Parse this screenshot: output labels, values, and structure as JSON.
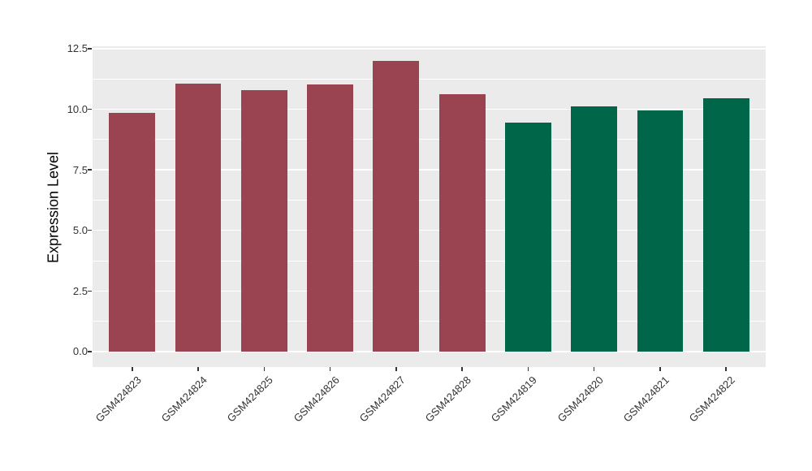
{
  "figure": {
    "background": "#FFFFFF",
    "panel_background": "#EBEBEB",
    "gridline_color": "#FFFFFF",
    "tick_mark_color": "#333333",
    "axis_text_color": "#333333",
    "axis_title_color": "#000000"
  },
  "chart_data": {
    "type": "bar",
    "title": "",
    "xlabel": "",
    "ylabel": "Expression Level",
    "categories": [
      "GSM424823",
      "GSM424824",
      "GSM424825",
      "GSM424826",
      "GSM424827",
      "GSM424828",
      "GSM424819",
      "GSM424820",
      "GSM424821",
      "GSM424822"
    ],
    "values": [
      9.84,
      11.07,
      10.8,
      11.04,
      12.0,
      10.62,
      9.45,
      10.12,
      9.96,
      10.45
    ],
    "bar_colors": [
      "#9A4451",
      "#9A4451",
      "#9A4451",
      "#9A4451",
      "#9A4451",
      "#9A4451",
      "#00664A",
      "#00664A",
      "#00664A",
      "#00664A"
    ],
    "accent_colors": {
      "maroon": "#9A4451",
      "green": "#00664A"
    },
    "ylim": [
      -0.64,
      12.6
    ],
    "yticks": [
      {
        "value": 0,
        "label": "0.0"
      },
      {
        "value": 2.5,
        "label": "2.5"
      },
      {
        "value": 5,
        "label": "5.0"
      },
      {
        "value": 7.5,
        "label": "7.5"
      },
      {
        "value": 10,
        "label": "10.0"
      },
      {
        "value": 12.5,
        "label": "12.5"
      }
    ],
    "yminor": [
      1.25,
      3.75,
      6.25,
      8.75,
      11.25
    ],
    "grid": true,
    "legend": "none",
    "x_label_angle_deg": 45
  }
}
